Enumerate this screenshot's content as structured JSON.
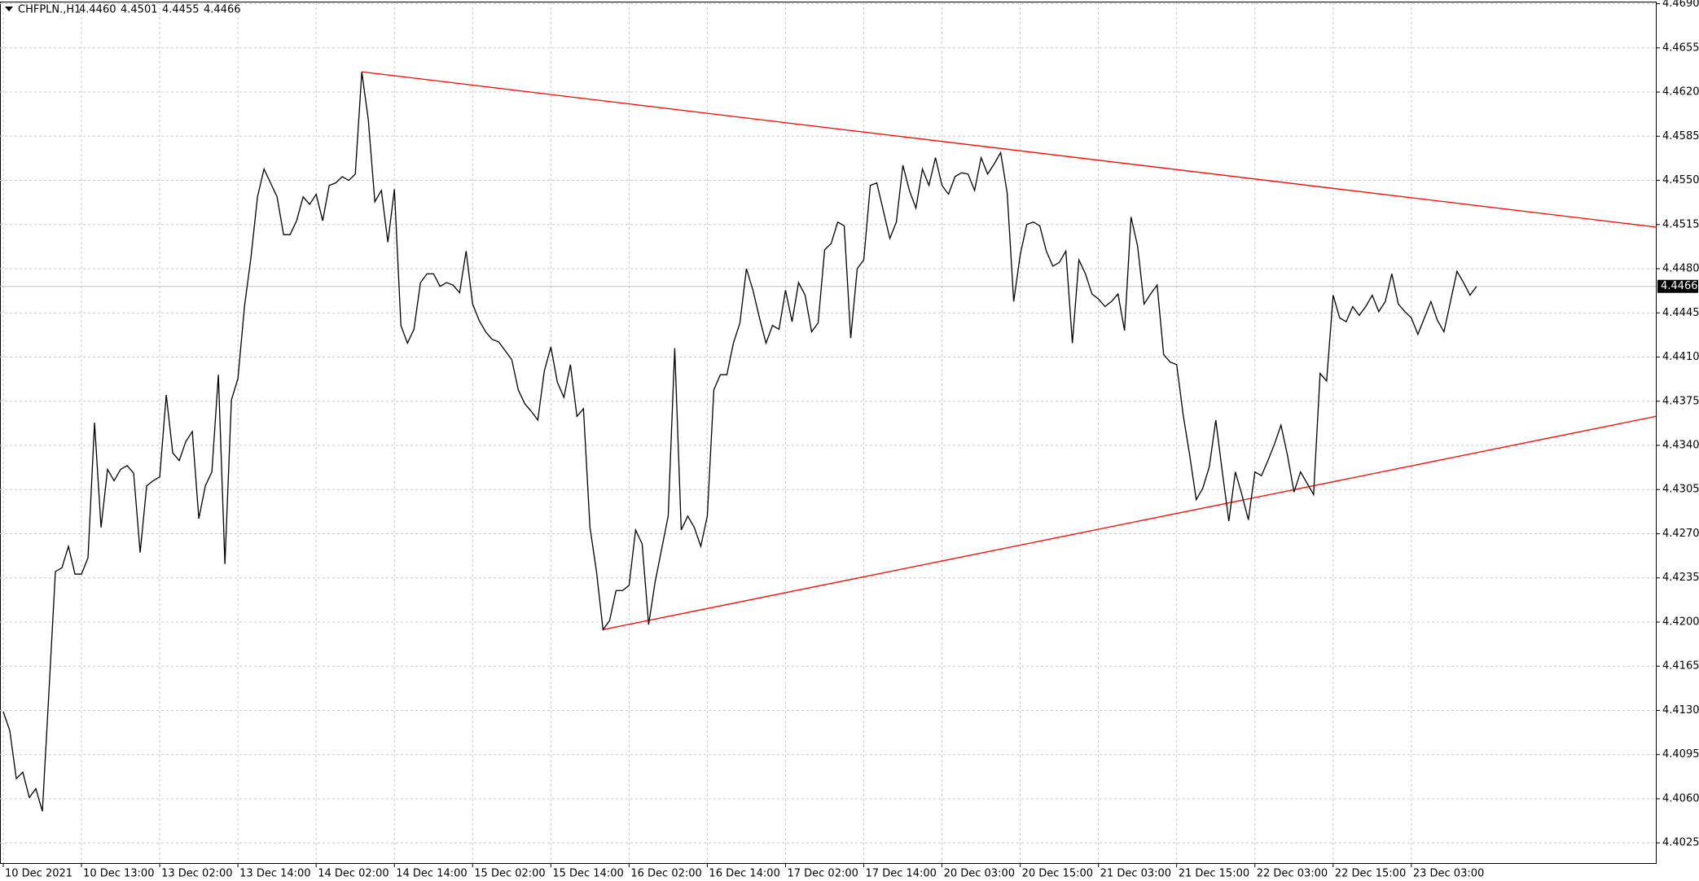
{
  "chart_data": {
    "type": "line",
    "title": "CHFPLN.,H1",
    "quote": [
      "4.4460",
      "4.4501",
      "4.4455",
      "4.4466"
    ],
    "xlim": [
      -0.5,
      253.5
    ],
    "xticks": [
      {
        "value": 0,
        "label": "10 Dec 2021"
      },
      {
        "value": 12,
        "label": "10 Dec 13:00"
      },
      {
        "value": 24,
        "label": "13 Dec 02:00"
      },
      {
        "value": 36,
        "label": "13 Dec 14:00"
      },
      {
        "value": 48,
        "label": "14 Dec 02:00"
      },
      {
        "value": 60,
        "label": "14 Dec 14:00"
      },
      {
        "value": 72,
        "label": "15 Dec 02:00"
      },
      {
        "value": 84,
        "label": "15 Dec 14:00"
      },
      {
        "value": 96,
        "label": "16 Dec 02:00"
      },
      {
        "value": 108,
        "label": "16 Dec 14:00"
      },
      {
        "value": 120,
        "label": "17 Dec 02:00"
      },
      {
        "value": 132,
        "label": "17 Dec 14:00"
      },
      {
        "value": 144,
        "label": "20 Dec 03:00"
      },
      {
        "value": 156,
        "label": "20 Dec 15:00"
      },
      {
        "value": 168,
        "label": "21 Dec 03:00"
      },
      {
        "value": 180,
        "label": "21 Dec 15:00"
      },
      {
        "value": 192,
        "label": "22 Dec 03:00"
      },
      {
        "value": 204,
        "label": "22 Dec 15:00"
      },
      {
        "value": 216,
        "label": "23 Dec 03:00"
      }
    ],
    "ylim": [
      4.4009,
      4.4691
    ],
    "yticks": [
      {
        "value": 4.469,
        "label": "4.4690"
      },
      4.4655,
      {
        "value": 4.462,
        "label": "4.4620"
      },
      4.4585,
      {
        "value": 4.455,
        "label": "4.4550"
      },
      4.4515,
      {
        "value": 4.448,
        "label": "4.4480"
      },
      4.4445,
      {
        "value": 4.441,
        "label": "4.4410"
      },
      4.4375,
      {
        "value": 4.434,
        "label": "4.4340"
      },
      4.4305,
      {
        "value": 4.427,
        "label": "4.4270"
      },
      4.4235,
      {
        "value": 4.42,
        "label": "4.4200"
      },
      4.4165,
      {
        "value": 4.413,
        "label": "4.4130"
      },
      4.4095,
      {
        "value": 4.406,
        "label": "4.4060"
      },
      4.4025
    ],
    "grid": true,
    "current_price": 4.4466,
    "series": [
      {
        "color": "#000000",
        "values": [
          4.4129,
          4.4114,
          4.4076,
          4.4081,
          4.4061,
          4.4068,
          4.405,
          4.4144,
          4.424,
          4.4243,
          4.426,
          4.4238,
          4.4238,
          4.4251,
          4.4358,
          4.4275,
          4.4321,
          4.4312,
          4.4321,
          4.4324,
          4.4318,
          4.4255,
          4.4308,
          4.4312,
          4.4315,
          4.438,
          4.4334,
          4.4328,
          4.4343,
          4.4351,
          4.4282,
          4.4308,
          4.4319,
          4.4396,
          4.4246,
          4.4376,
          4.4393,
          4.445,
          4.4489,
          4.4537,
          4.4559,
          4.4548,
          4.4537,
          4.4507,
          4.4507,
          4.4518,
          4.4537,
          4.4531,
          4.4539,
          4.4518,
          4.4546,
          4.4548,
          4.4553,
          4.455,
          4.4555,
          4.4636,
          4.4598,
          4.4533,
          4.4542,
          4.4501,
          4.4543,
          4.4435,
          4.4421,
          4.4432,
          4.4469,
          4.4476,
          4.4476,
          4.4466,
          4.4469,
          4.4467,
          4.4461,
          4.4494,
          4.4452,
          4.4439,
          4.443,
          4.4424,
          4.4422,
          4.4415,
          4.4408,
          4.4384,
          4.4373,
          4.4367,
          4.436,
          4.4399,
          4.4418,
          4.439,
          4.4378,
          4.4404,
          4.4363,
          4.4369,
          4.4275,
          4.424,
          4.4194,
          4.4201,
          4.4225,
          4.4225,
          4.4229,
          4.4273,
          4.4262,
          4.4198,
          4.4232,
          4.4258,
          4.4284,
          4.4417,
          4.4273,
          4.4284,
          4.4275,
          4.426,
          4.4284,
          4.4384,
          4.4396,
          4.4396,
          4.4421,
          4.4437,
          4.448,
          4.4463,
          4.4441,
          4.4421,
          4.4435,
          4.4432,
          4.4463,
          4.4438,
          4.4469,
          4.4459,
          4.443,
          4.4437,
          4.4495,
          4.45,
          4.4517,
          4.4514,
          4.4425,
          4.448,
          4.4487,
          4.4546,
          4.4548,
          4.4526,
          4.4504,
          4.4517,
          4.4562,
          4.4542,
          4.4528,
          4.4559,
          4.4546,
          4.4568,
          4.4546,
          4.4539,
          4.4553,
          4.4556,
          4.4555,
          4.4542,
          4.4568,
          4.4555,
          4.4563,
          4.4572,
          4.454,
          4.4454,
          4.4491,
          4.4515,
          4.4517,
          4.4514,
          4.4494,
          4.4482,
          4.4485,
          4.4494,
          4.4421,
          4.4487,
          4.4476,
          4.446,
          4.4456,
          4.445,
          4.4454,
          4.446,
          4.4431,
          4.4521,
          4.4498,
          4.4452,
          4.446,
          4.4467,
          4.4412,
          4.4406,
          4.4404,
          4.4364,
          4.4332,
          4.4297,
          4.4306,
          4.4323,
          4.436,
          4.4319,
          4.428,
          4.4319,
          4.4301,
          4.4281,
          4.4319,
          4.4316,
          4.4328,
          4.4341,
          4.4356,
          4.4332,
          4.4303,
          4.4319,
          4.431,
          4.4301,
          4.4397,
          4.4391,
          4.4459,
          4.4441,
          4.4438,
          4.445,
          4.4443,
          4.445,
          4.4459,
          4.4446,
          4.4454,
          4.4476,
          4.4452,
          4.4446,
          4.4441,
          4.4428,
          4.4441,
          4.4454,
          4.4439,
          4.443,
          4.4454,
          4.4478,
          4.4469,
          4.4459,
          4.4466
        ]
      }
    ],
    "trendlines": [
      {
        "color": "#ff0000",
        "x": [
          55,
          253.5
        ],
        "y": [
          4.4636,
          4.4513
        ]
      },
      {
        "color": "#ff0000",
        "x": [
          92,
          253.5
        ],
        "y": [
          4.4194,
          4.4363
        ]
      }
    ]
  }
}
